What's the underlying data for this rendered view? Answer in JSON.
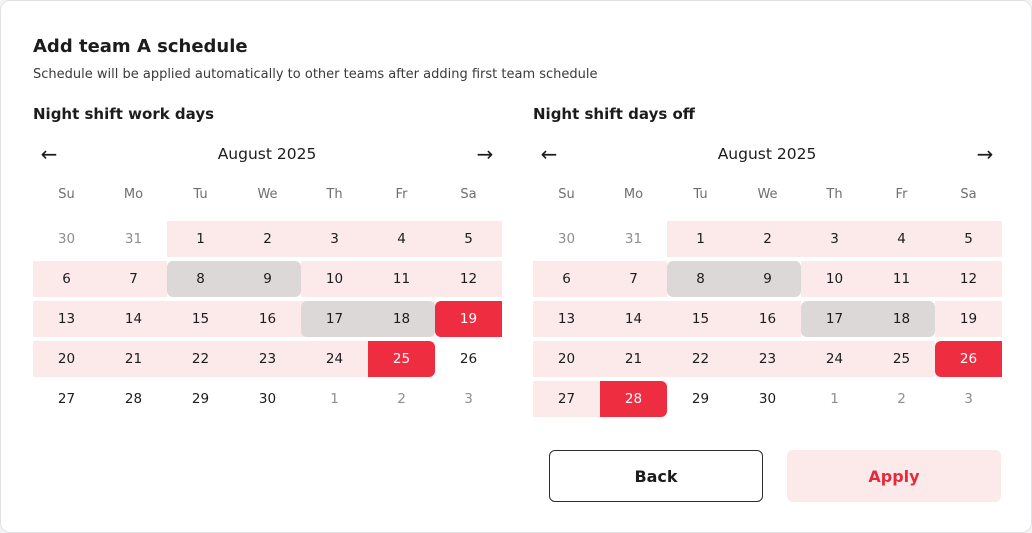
{
  "dialog": {
    "title": "Add team A schedule",
    "subtitle": "Schedule will be applied automatically to other teams after adding first team schedule"
  },
  "colors": {
    "work_tint": "#fce9ea",
    "off_gray": "#dcd8d8",
    "selected_red": "#ef2d41",
    "muted_text": "#8e8e93",
    "accent": "#e8293b"
  },
  "weekdays": [
    "Su",
    "Mo",
    "Tu",
    "We",
    "Th",
    "Fr",
    "Sa"
  ],
  "calendars": [
    {
      "title": "Night shift work days",
      "month": "August 2025",
      "weeks": [
        [
          30,
          31,
          1,
          2,
          3,
          4,
          5
        ],
        [
          6,
          7,
          8,
          9,
          10,
          11,
          12
        ],
        [
          13,
          14,
          15,
          16,
          17,
          18,
          19
        ],
        [
          20,
          21,
          22,
          23,
          24,
          25,
          26
        ],
        [
          27,
          28,
          29,
          30,
          1,
          2,
          3
        ]
      ],
      "outside_month": [
        [
          0,
          0
        ],
        [
          0,
          1
        ],
        [
          4,
          4
        ],
        [
          4,
          5
        ],
        [
          4,
          6
        ]
      ],
      "tinted_ranges": [
        [
          0,
          2,
          6
        ],
        [
          1,
          0,
          1
        ],
        [
          1,
          4,
          6
        ],
        [
          2,
          0,
          5
        ],
        [
          3,
          0,
          4
        ]
      ],
      "gray_ranges": [
        [
          1,
          2,
          3
        ],
        [
          2,
          4,
          5
        ]
      ],
      "selected_days": [
        [
          2,
          6
        ],
        [
          3,
          5
        ]
      ]
    },
    {
      "title": "Night shift days off",
      "month": "August 2025",
      "weeks": [
        [
          30,
          31,
          1,
          2,
          3,
          4,
          5
        ],
        [
          6,
          7,
          8,
          9,
          10,
          11,
          12
        ],
        [
          13,
          14,
          15,
          16,
          17,
          18,
          19
        ],
        [
          20,
          21,
          22,
          23,
          24,
          25,
          26
        ],
        [
          27,
          28,
          29,
          30,
          1,
          2,
          3
        ]
      ],
      "outside_month": [
        [
          0,
          0
        ],
        [
          0,
          1
        ],
        [
          4,
          4
        ],
        [
          4,
          5
        ],
        [
          4,
          6
        ]
      ],
      "tinted_ranges": [
        [
          0,
          2,
          6
        ],
        [
          1,
          0,
          1
        ],
        [
          1,
          4,
          6
        ],
        [
          2,
          0,
          3
        ],
        [
          2,
          6,
          6
        ],
        [
          3,
          0,
          5
        ],
        [
          4,
          0,
          0
        ]
      ],
      "gray_ranges": [
        [
          1,
          2,
          3
        ],
        [
          2,
          4,
          5
        ]
      ],
      "selected_days": [
        [
          3,
          6
        ],
        [
          4,
          1
        ]
      ]
    }
  ],
  "buttons": {
    "back": "Back",
    "apply": "Apply"
  }
}
